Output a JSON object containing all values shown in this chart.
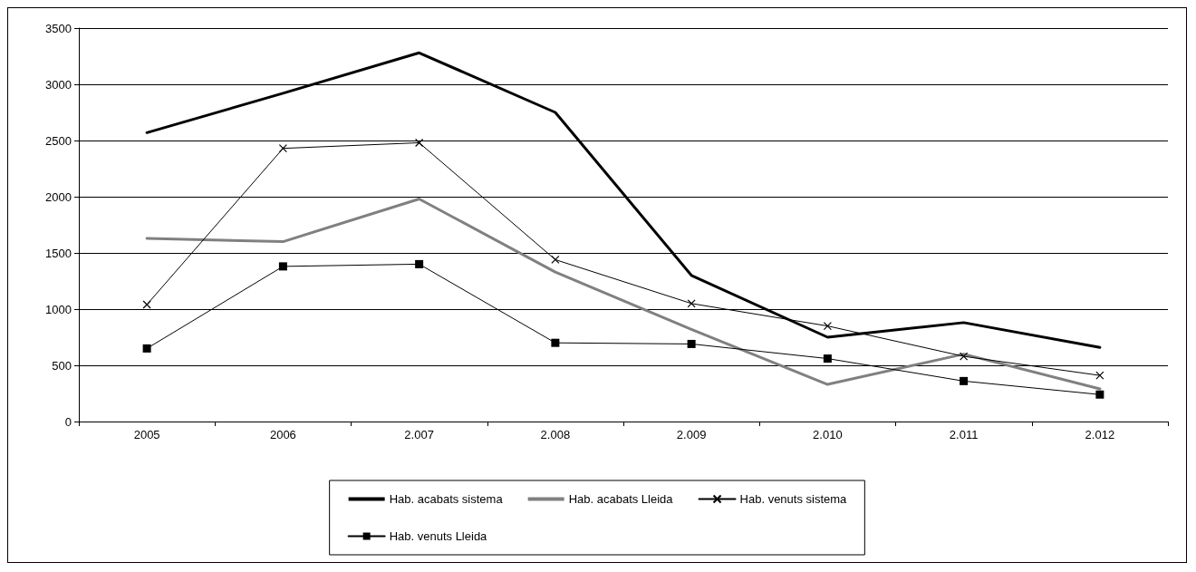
{
  "chart_data": {
    "type": "line",
    "categories": [
      "2005",
      "2006",
      "2.007",
      "2.008",
      "2.009",
      "2.010",
      "2.011",
      "2.012"
    ],
    "series": [
      {
        "name": "Hab. acabats sistema",
        "color": "#000000",
        "values": [
          2570,
          2920,
          3280,
          2750,
          1300,
          750,
          880,
          660
        ],
        "marker": "none"
      },
      {
        "name": "Hab. acabats Lleida",
        "color": "#808080",
        "values": [
          1630,
          1600,
          1980,
          1330,
          820,
          330,
          600,
          290
        ],
        "marker": "none"
      },
      {
        "name": "Hab. venuts sistema",
        "color": "#000000",
        "values": [
          1040,
          2430,
          2480,
          1440,
          1050,
          850,
          580,
          410
        ],
        "marker": "cross"
      },
      {
        "name": "Hab. venuts Lleida",
        "color": "#000000",
        "values": [
          650,
          1380,
          1400,
          700,
          690,
          560,
          360,
          240
        ],
        "marker": "square"
      }
    ],
    "ylim": [
      0,
      3500
    ],
    "yticks": [
      0,
      500,
      1000,
      1500,
      2000,
      2500,
      3000,
      3500
    ],
    "grid": "y",
    "legend": "bottom",
    "line_style": "solid"
  }
}
